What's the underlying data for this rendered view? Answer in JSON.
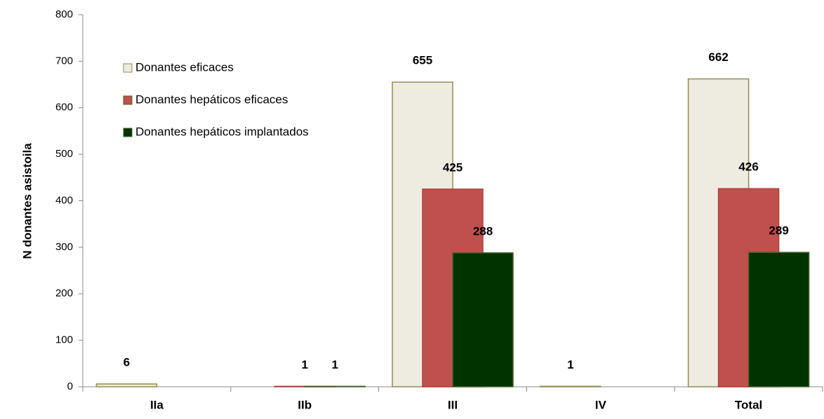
{
  "chart_data": {
    "type": "bar",
    "y_label": "N donantes asistoila",
    "categories": [
      "IIa",
      "IIb",
      "III",
      "IV",
      "Total"
    ],
    "series": [
      {
        "name": "Donantes eficaces",
        "color": "#eeece1",
        "values": [
          6,
          0,
          655,
          1,
          662
        ],
        "value_labels": [
          "6",
          null,
          "655",
          "1",
          "662"
        ]
      },
      {
        "name": "Donantes hepáticos eficaces",
        "color": "#c0504d",
        "values": [
          null,
          1,
          425,
          null,
          426
        ],
        "value_labels": [
          null,
          "1",
          "425",
          null,
          "426"
        ]
      },
      {
        "name": "Donantes hepáticos implantados",
        "color": "#003300",
        "values": [
          null,
          1,
          288,
          null,
          289
        ],
        "value_labels": [
          null,
          "1",
          "288",
          null,
          "289"
        ]
      }
    ],
    "ylim": [
      0,
      800
    ],
    "yticks": [
      0,
      100,
      200,
      300,
      400,
      500,
      600,
      700,
      800
    ],
    "legend": "top-left",
    "grid": false
  }
}
